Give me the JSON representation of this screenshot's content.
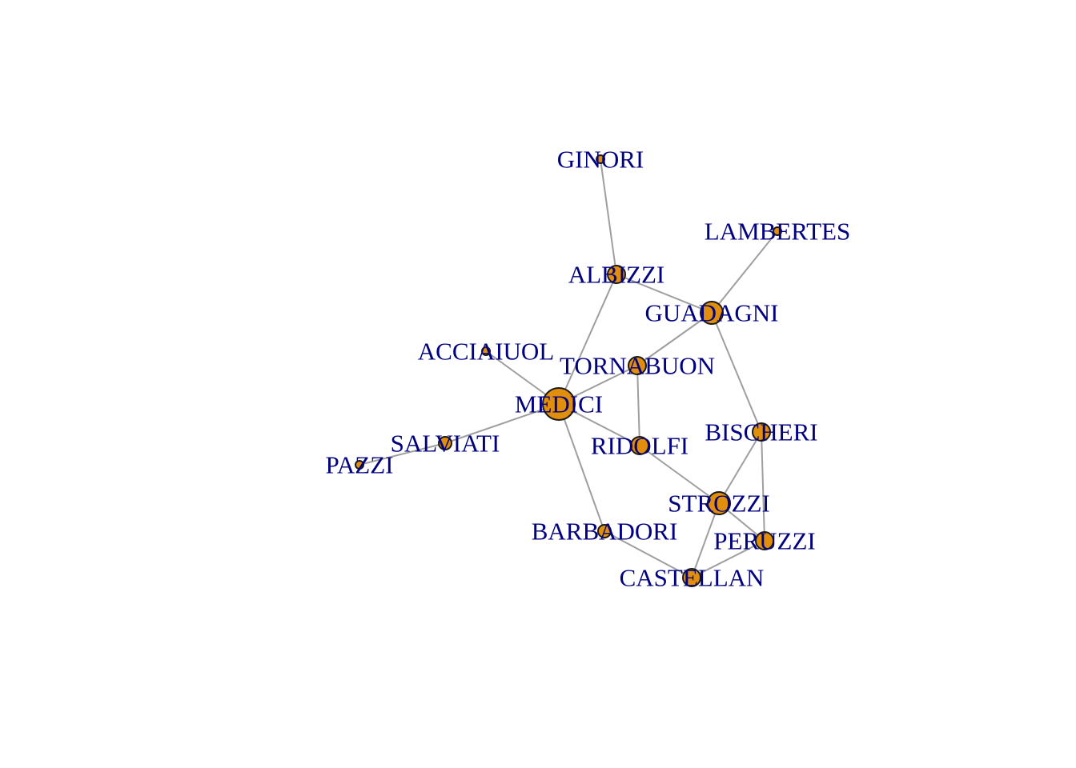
{
  "graph": {
    "node_color": "#e08e0b",
    "node_border_color": "#1a1a1a",
    "label_color": "#000080",
    "edge_color": "#9e9e9e",
    "nodes": [
      {
        "id": "ACCIAIUOL",
        "label": "ACCIAIUOL",
        "degree": 1
      },
      {
        "id": "ALBIZZI",
        "label": "ALBIZZI",
        "degree": 3
      },
      {
        "id": "BARBADORI",
        "label": "BARBADORI",
        "degree": 2
      },
      {
        "id": "BISCHERI",
        "label": "BISCHERI",
        "degree": 3
      },
      {
        "id": "CASTELLAN",
        "label": "CASTELLAN",
        "degree": 3
      },
      {
        "id": "GINORI",
        "label": "GINORI",
        "degree": 1
      },
      {
        "id": "GUADAGNI",
        "label": "GUADAGNI",
        "degree": 4
      },
      {
        "id": "LAMBERTES",
        "label": "LAMBERTES",
        "degree": 1
      },
      {
        "id": "MEDICI",
        "label": "MEDICI",
        "degree": 6
      },
      {
        "id": "PAZZI",
        "label": "PAZZI",
        "degree": 1
      },
      {
        "id": "PERUZZI",
        "label": "PERUZZI",
        "degree": 3
      },
      {
        "id": "RIDOLFI",
        "label": "RIDOLFI",
        "degree": 3
      },
      {
        "id": "SALVIATI",
        "label": "SALVIATI",
        "degree": 2
      },
      {
        "id": "STROZZI",
        "label": "STROZZI",
        "degree": 4
      },
      {
        "id": "TORNABUON",
        "label": "TORNABUON",
        "degree": 3
      }
    ],
    "edges": [
      [
        "ACCIAIUOL",
        "MEDICI"
      ],
      [
        "ALBIZZI",
        "GINORI"
      ],
      [
        "ALBIZZI",
        "GUADAGNI"
      ],
      [
        "ALBIZZI",
        "MEDICI"
      ],
      [
        "BARBADORI",
        "CASTELLAN"
      ],
      [
        "BARBADORI",
        "MEDICI"
      ],
      [
        "BISCHERI",
        "GUADAGNI"
      ],
      [
        "BISCHERI",
        "PERUZZI"
      ],
      [
        "BISCHERI",
        "STROZZI"
      ],
      [
        "CASTELLAN",
        "PERUZZI"
      ],
      [
        "CASTELLAN",
        "STROZZI"
      ],
      [
        "GUADAGNI",
        "LAMBERTES"
      ],
      [
        "GUADAGNI",
        "TORNABUON"
      ],
      [
        "MEDICI",
        "RIDOLFI"
      ],
      [
        "MEDICI",
        "SALVIATI"
      ],
      [
        "MEDICI",
        "TORNABUON"
      ],
      [
        "PAZZI",
        "SALVIATI"
      ],
      [
        "PERUZZI",
        "STROZZI"
      ],
      [
        "RIDOLFI",
        "STROZZI"
      ],
      [
        "RIDOLFI",
        "TORNABUON"
      ]
    ]
  }
}
